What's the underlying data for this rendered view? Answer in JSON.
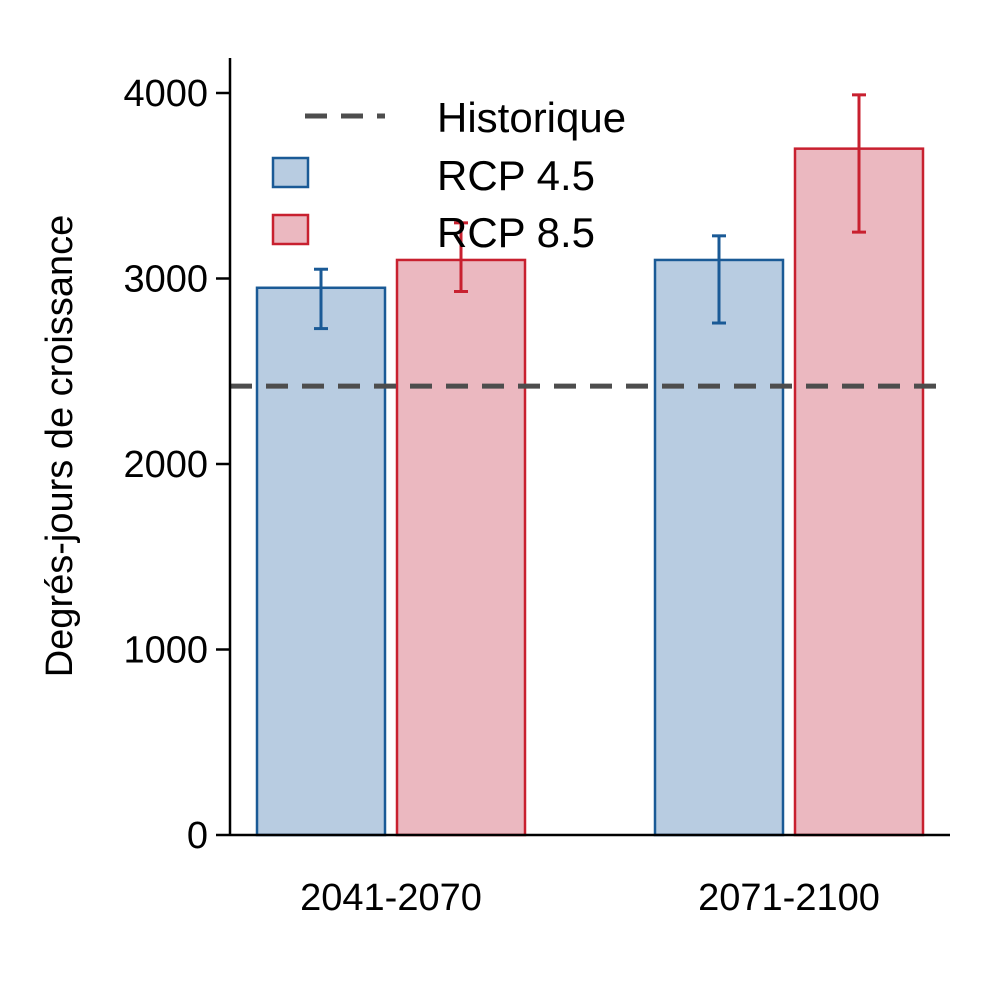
{
  "chart_data": {
    "type": "bar",
    "title": "",
    "xlabel": "",
    "ylabel": "Degrés-jours de croissance",
    "ylim": [
      0,
      4200
    ],
    "yticks": [
      0,
      1000,
      2000,
      3000,
      4000
    ],
    "ytick_labels": [
      "0",
      "1000",
      "2000",
      "3000",
      "4000"
    ],
    "categories": [
      "2041-2070",
      "2071-2100"
    ],
    "series": [
      {
        "name": "RCP 4.5",
        "color": "#1a5a96",
        "fill": "#b8cce1",
        "values": [
          2950,
          3100
        ],
        "err_low": [
          2730,
          2760
        ],
        "err_high": [
          3050,
          3230
        ]
      },
      {
        "name": "RCP 8.5",
        "color": "#c8202f",
        "fill": "#ebb8c0",
        "values": [
          3100,
          3700
        ],
        "err_low": [
          2930,
          3250
        ],
        "err_high": [
          3300,
          3990
        ]
      }
    ],
    "reference_line": {
      "name": "Historique",
      "value": 2420,
      "color": "#4d4d4d",
      "style": "dashed"
    },
    "legend": {
      "placement": "top-left",
      "entries": [
        "Historique",
        "RCP 4.5",
        "RCP 8.5"
      ]
    },
    "grid": false
  }
}
